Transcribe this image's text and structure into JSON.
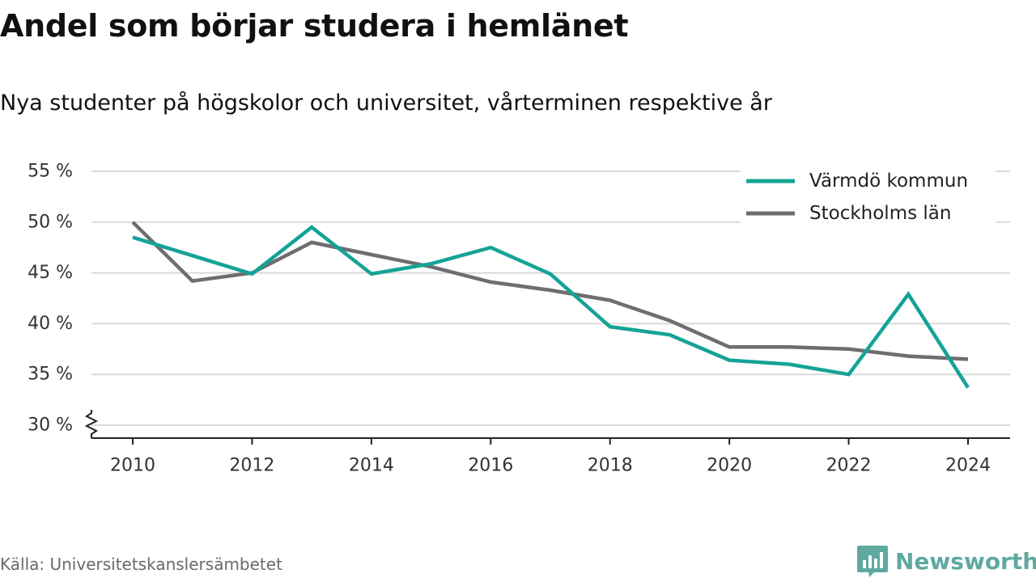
{
  "header": {
    "title": "Andel som börjar studera i hemlänet",
    "subtitle": "Nya studenter på högskolor och universitet, vårterminen respektive år"
  },
  "footer": {
    "source": "Källa: Universitetskanslersämbetet",
    "brand": "Newsworthy"
  },
  "colors": {
    "varmdo": "#14a396",
    "stockholm": "#6d6d72",
    "grid": "#d9d9d9",
    "brand": "#5fa9a1"
  },
  "icons": {
    "logo": "bar-chart-speech-bubble-icon",
    "axis_break": "zigzag-axis-break-icon"
  },
  "chart_data": {
    "type": "line",
    "x": [
      2010,
      2011,
      2012,
      2013,
      2014,
      2015,
      2016,
      2017,
      2018,
      2019,
      2020,
      2021,
      2022,
      2023,
      2024
    ],
    "x_ticks": [
      2010,
      2012,
      2014,
      2016,
      2018,
      2020,
      2022,
      2024
    ],
    "x_tick_labels": [
      "2010",
      "2012",
      "2014",
      "2016",
      "2018",
      "2020",
      "2022",
      "2024"
    ],
    "y_ticks": [
      30,
      35,
      40,
      45,
      50,
      55
    ],
    "y_tick_labels": [
      "30 %",
      "35 %",
      "40 %",
      "45 %",
      "50 %",
      "55 %"
    ],
    "ylim": [
      30,
      55
    ],
    "xlim": [
      2010,
      2024
    ],
    "y_axis_break": true,
    "grid": true,
    "legend_position": "top-right",
    "series": [
      {
        "name": "Värmdö kommun",
        "color": "#14a396",
        "values": [
          48.5,
          46.7,
          44.9,
          49.5,
          44.9,
          45.9,
          47.5,
          44.9,
          39.7,
          38.9,
          36.4,
          36.0,
          35.0,
          42.9,
          33.7
        ]
      },
      {
        "name": "Stockholms län",
        "color": "#6d6d72",
        "values": [
          50.0,
          44.2,
          45.0,
          48.0,
          46.8,
          45.6,
          44.1,
          43.3,
          42.3,
          40.3,
          37.7,
          37.7,
          37.5,
          36.8,
          36.5
        ]
      }
    ]
  }
}
